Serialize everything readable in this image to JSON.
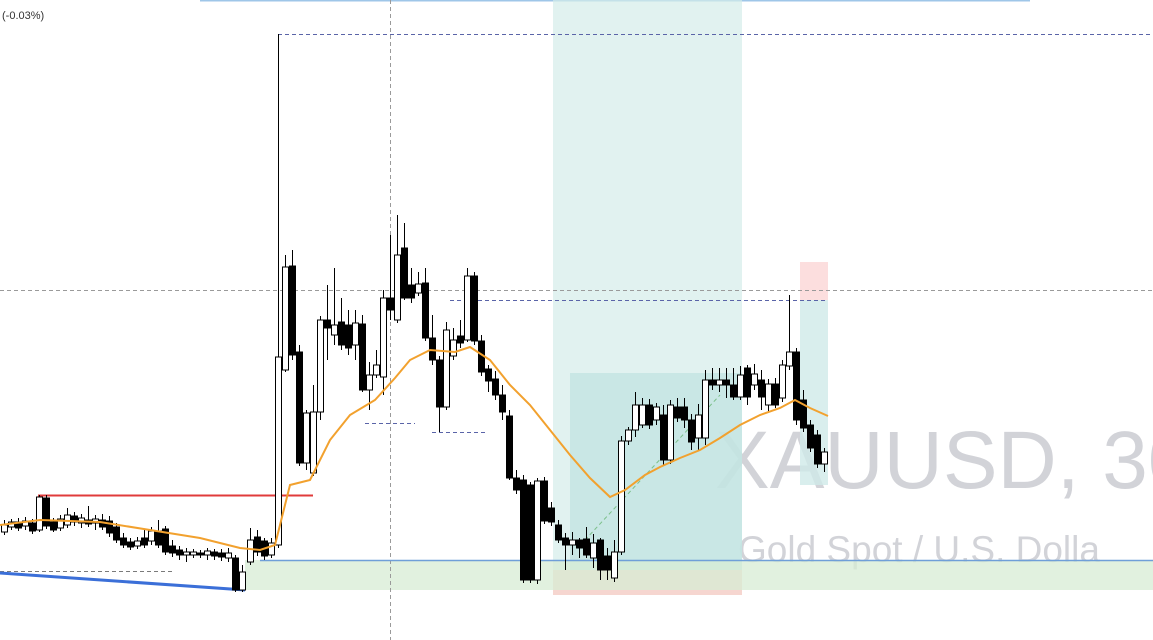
{
  "header": {
    "change": "(-0.03%)"
  },
  "watermark": {
    "symbol": "XAUUSD, 30",
    "description": "Gold Spot / U.S. Dolla"
  }
}
